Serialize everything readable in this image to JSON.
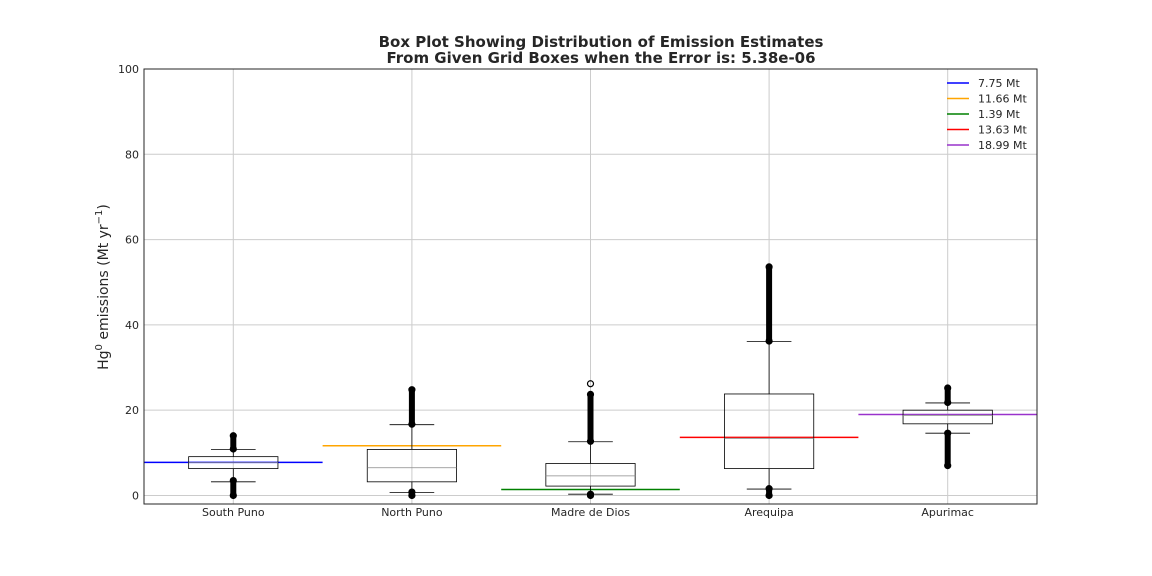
{
  "chart_data": {
    "type": "box",
    "title": [
      "Box Plot Showing Distribution of Emission Estimates",
      "From Given Grid Boxes when the Error is: 5.38e-06"
    ],
    "ylabel": {
      "base": "Hg",
      "sup1": "0",
      "mid": " emissions (Mt yr",
      "sup2": "−1",
      "end": ")"
    },
    "ylim": [
      -2,
      100
    ],
    "yticks": [
      0,
      20,
      40,
      60,
      80,
      100
    ],
    "grid": true,
    "legend_position": "top-right",
    "categories": [
      "South Puno",
      "North Puno",
      "Madre de Dios",
      "Arequipa",
      "Apurimac"
    ],
    "boxes": [
      {
        "category": "South Puno",
        "whislo": 3.2,
        "q1": 6.3,
        "med": 7.7,
        "q3": 9.1,
        "whishi": 10.8,
        "fliers_low": [
          0.0,
          3.5
        ],
        "fliers_high": [
          10.9,
          14.0
        ]
      },
      {
        "category": "North Puno",
        "whislo": 0.7,
        "q1": 3.2,
        "med": 6.5,
        "q3": 10.8,
        "whishi": 16.6,
        "fliers_low": [
          0.0,
          0.8
        ],
        "fliers_high": [
          16.7,
          24.8
        ]
      },
      {
        "category": "Madre de Dios",
        "whislo": 0.3,
        "q1": 2.2,
        "med": 4.6,
        "q3": 7.5,
        "whishi": 12.6,
        "fliers_low": [
          0.0,
          0.3
        ],
        "fliers_high": [
          12.7,
          23.7
        ],
        "fliers_extra": [
          26.2
        ]
      },
      {
        "category": "Arequipa",
        "whislo": 1.5,
        "q1": 6.3,
        "med": 13.4,
        "q3": 23.8,
        "whishi": 36.1,
        "fliers_low": [
          0.0,
          1.6
        ],
        "fliers_high": [
          36.2,
          53.6
        ]
      },
      {
        "category": "Apurimac",
        "whislo": 14.6,
        "q1": 16.8,
        "med": 18.8,
        "q3": 20.0,
        "whishi": 21.7,
        "fliers_low": [
          7.0,
          14.6
        ],
        "fliers_high": [
          21.8,
          25.2
        ]
      }
    ],
    "reference_lines": [
      {
        "label": "7.75 Mt",
        "value": 7.75,
        "color": "#0000ff",
        "category_index": 0
      },
      {
        "label": "11.66 Mt",
        "value": 11.66,
        "color": "#ffa500",
        "category_index": 1
      },
      {
        "label": "1.39 Mt",
        "value": 1.39,
        "color": "#008000",
        "category_index": 2
      },
      {
        "label": "13.63 Mt",
        "value": 13.63,
        "color": "#ff0000",
        "category_index": 3
      },
      {
        "label": "18.99 Mt",
        "value": 18.99,
        "color": "#9932cc",
        "category_index": 4
      }
    ]
  }
}
